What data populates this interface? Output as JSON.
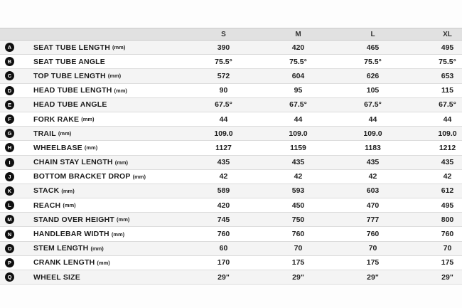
{
  "table": {
    "title": "frame-geometry-table",
    "size_columns": [
      "S",
      "M",
      "L",
      "XL"
    ],
    "rows": [
      {
        "letter": "A",
        "label": "SEAT TUBE LENGTH",
        "unit": "(mm)",
        "values": [
          "390",
          "420",
          "465",
          "495"
        ]
      },
      {
        "letter": "B",
        "label": "SEAT TUBE ANGLE",
        "unit": "",
        "values": [
          "75.5°",
          "75.5°",
          "75.5°",
          "75.5°"
        ]
      },
      {
        "letter": "C",
        "label": "TOP TUBE LENGTH",
        "unit": "(mm)",
        "values": [
          "572",
          "604",
          "626",
          "653"
        ]
      },
      {
        "letter": "D",
        "label": "HEAD TUBE LENGTH",
        "unit": "(mm)",
        "values": [
          "90",
          "95",
          "105",
          "115"
        ]
      },
      {
        "letter": "E",
        "label": "HEAD TUBE ANGLE",
        "unit": "",
        "values": [
          "67.5°",
          "67.5°",
          "67.5°",
          "67.5°"
        ]
      },
      {
        "letter": "F",
        "label": "FORK RAKE",
        "unit": "(mm)",
        "values": [
          "44",
          "44",
          "44",
          "44"
        ]
      },
      {
        "letter": "G",
        "label": "TRAIL",
        "unit": "(mm)",
        "values": [
          "109.0",
          "109.0",
          "109.0",
          "109.0"
        ]
      },
      {
        "letter": "H",
        "label": "WHEELBASE",
        "unit": "(mm)",
        "values": [
          "1127",
          "1159",
          "1183",
          "1212"
        ]
      },
      {
        "letter": "I",
        "label": "CHAIN STAY LENGTH",
        "unit": "(mm)",
        "values": [
          "435",
          "435",
          "435",
          "435"
        ]
      },
      {
        "letter": "J",
        "label": "BOTTOM BRACKET DROP",
        "unit": "(mm)",
        "values": [
          "42",
          "42",
          "42",
          "42"
        ]
      },
      {
        "letter": "K",
        "label": "STACK",
        "unit": "(mm)",
        "values": [
          "589",
          "593",
          "603",
          "612"
        ]
      },
      {
        "letter": "L",
        "label": "REACH",
        "unit": "(mm)",
        "values": [
          "420",
          "450",
          "470",
          "495"
        ]
      },
      {
        "letter": "M",
        "label": "STAND OVER HEIGHT",
        "unit": "(mm)",
        "values": [
          "745",
          "750",
          "777",
          "800"
        ]
      },
      {
        "letter": "N",
        "label": "HANDLEBAR WIDTH",
        "unit": "(mm)",
        "values": [
          "760",
          "760",
          "760",
          "760"
        ]
      },
      {
        "letter": "O",
        "label": "STEM LENGTH",
        "unit": "(mm)",
        "values": [
          "60",
          "70",
          "70",
          "70"
        ]
      },
      {
        "letter": "P",
        "label": "CRANK LENGTH",
        "unit": "(mm)",
        "values": [
          "170",
          "175",
          "175",
          "175"
        ]
      },
      {
        "letter": "Q",
        "label": "WHEEL SIZE",
        "unit": "",
        "values": [
          "29\"",
          "29\"",
          "29\"",
          "29\""
        ]
      }
    ],
    "colors": {
      "header_bg": "#e1e1e1",
      "stripe_bg": "#f4f4f4",
      "row_bg": "#ffffff",
      "border": "#dcdcdc",
      "header_border": "#c9c9c9",
      "badge_bg": "#101010",
      "badge_text": "#ffffff",
      "label_text": "#1c1c1c",
      "value_text": "#1f1f1f"
    }
  }
}
